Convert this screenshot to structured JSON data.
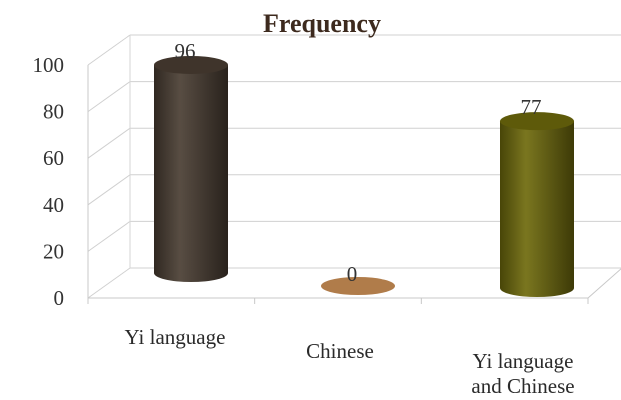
{
  "chart_data": {
    "type": "bar",
    "title": "Frequency",
    "categories": [
      "Yi language",
      "Chinese",
      "Yi language and Chinese"
    ],
    "category_lines": [
      [
        "Yi language"
      ],
      [
        "Chinese"
      ],
      [
        "Yi language",
        "and Chinese"
      ]
    ],
    "values": [
      96,
      0,
      77
    ],
    "data_labels": [
      "96",
      "0",
      "77"
    ],
    "colors": [
      "#4a3d33",
      "#b07c4a",
      "#6e6a0c"
    ],
    "ylim": [
      0,
      100
    ],
    "yticks": [
      0,
      20,
      40,
      60,
      80,
      100
    ],
    "xlabel": "",
    "ylabel": "",
    "grid": true,
    "legend": "none",
    "style": "3d-cylinder"
  }
}
